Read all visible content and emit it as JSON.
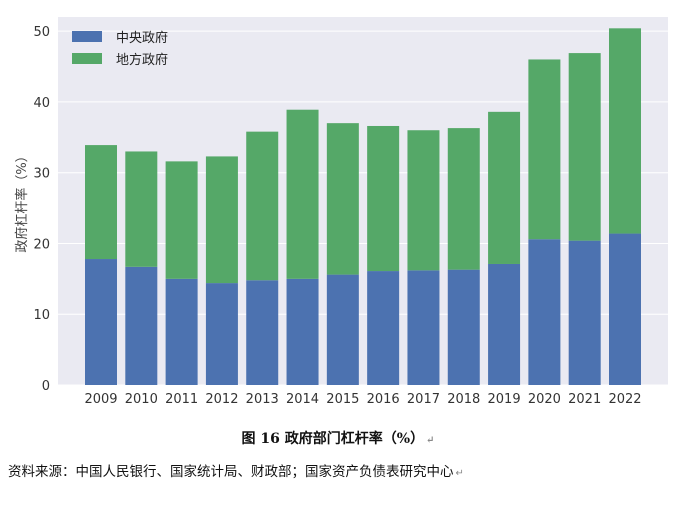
{
  "chart_data": {
    "type": "bar",
    "stacked": true,
    "categories": [
      "2009",
      "2010",
      "2011",
      "2012",
      "2013",
      "2014",
      "2015",
      "2016",
      "2017",
      "2018",
      "2019",
      "2020",
      "2021",
      "2022"
    ],
    "series": [
      {
        "name": "中央政府",
        "color": "#4C72B0",
        "values": [
          17.8,
          16.7,
          15.0,
          14.4,
          14.8,
          15.0,
          15.6,
          16.1,
          16.2,
          16.3,
          17.1,
          20.6,
          20.4,
          21.4
        ]
      },
      {
        "name": "地方政府",
        "color": "#55A868",
        "values": [
          16.1,
          16.3,
          16.6,
          17.9,
          21.0,
          23.9,
          21.4,
          20.5,
          19.8,
          20.0,
          21.5,
          25.4,
          26.5,
          29.0
        ]
      }
    ],
    "ylabel": "政府杠杆率（%）",
    "ylim": [
      0,
      52
    ],
    "yticks": [
      "0",
      "10",
      "20",
      "30",
      "40",
      "50"
    ],
    "grid": true,
    "legend_position": "top-left",
    "background": "#EAEAF2"
  },
  "caption": {
    "text": "图 16 政府部门杠杆率（%）",
    "return_mark": "↵"
  },
  "source": {
    "text": "资料来源：中国人民银行、国家统计局、财政部；国家资产负债表研究中心",
    "return_mark": "↵"
  }
}
